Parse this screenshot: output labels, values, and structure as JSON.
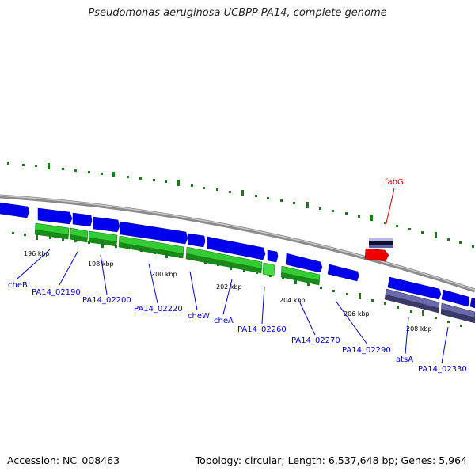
{
  "title": "Pseudomonas aeruginosa UCBPP-PA14, complete genome",
  "footer": {
    "accession": "Accession: NC_008463",
    "topology": "Topology: circular; Length: 6,537,648 bp; Genes: 5,964"
  },
  "kbp_labels": [
    "196 kbp",
    "198 kbp",
    "202 kbp",
    "200 kbp",
    "204 kbp",
    "206 kbp",
    "208 kbp"
  ],
  "gene_labels": [
    "cheB",
    "PA14_02190",
    "PA14_02200",
    "PA14_02220",
    "cheW",
    "cheA",
    "PA14_02260",
    "PA14_02270",
    "PA14_02290",
    "atsA",
    "PA14_02330",
    "fabG"
  ],
  "colors": {
    "cds_forward": "#0000ee",
    "cds_reverse_green": "#22aa22",
    "rna_red": "#ee0000",
    "dark_purple": "#4a4a8a",
    "backbone": "#8a8a8a",
    "ticks": "#1a7a1a",
    "label_blue": "#0000cc",
    "label_red": "#cc0000"
  }
}
